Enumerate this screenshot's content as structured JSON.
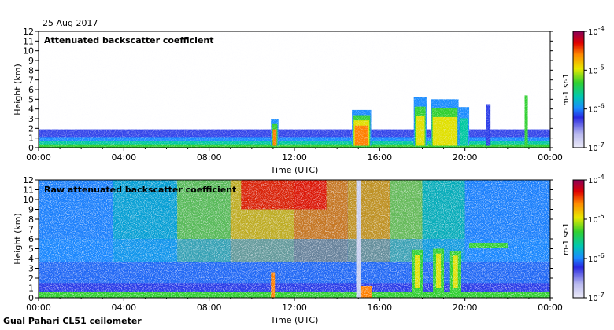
{
  "header": {
    "date": "25 Aug 2017"
  },
  "footer": {
    "instrument": "Gual Pahari CL51 ceilometer"
  },
  "chart_data": [
    {
      "type": "heatmap",
      "title": "Attenuated backscatter coefficient",
      "xlabel": "Time (UTC)",
      "ylabel": "Height (km)",
      "x_ticks": [
        "00:00",
        "04:00",
        "08:00",
        "12:00",
        "16:00",
        "20:00",
        "00:00"
      ],
      "x_range_hours": [
        0,
        24
      ],
      "y_ticks": [
        0,
        1,
        2,
        3,
        4,
        5,
        6,
        7,
        8,
        9,
        10,
        11,
        12
      ],
      "ylim": [
        0,
        12
      ],
      "colorbar": {
        "label": "m-1 sr-1",
        "scale": "log",
        "ticks": [
          "10-7",
          "10-6",
          "10-5",
          "10-4"
        ],
        "range": [
          1e-07,
          0.0001
        ]
      },
      "features": [
        {
          "description": "boundary layer aerosol",
          "hours": [
            0,
            24
          ],
          "top_km": 1.8
        },
        {
          "description": "cloud",
          "hours": [
            10.9,
            11.2
          ],
          "top_km": 3.0
        },
        {
          "description": "cloud",
          "hours": [
            14.8,
            15.6
          ],
          "top_km": 3.9
        },
        {
          "description": "cloud",
          "hours": [
            17.5,
            20.2
          ],
          "top_km": 5.2
        },
        {
          "description": "cloud",
          "hours": [
            22.8,
            23.0
          ],
          "top_km": 5.3
        }
      ]
    },
    {
      "type": "heatmap",
      "title": "Raw attenuated backscatter coefficient",
      "xlabel": "Time (UTC)",
      "ylabel": "Height (km)",
      "x_ticks": [
        "00:00",
        "04:00",
        "08:00",
        "12:00",
        "16:00",
        "20:00",
        "00:00"
      ],
      "x_range_hours": [
        0,
        24
      ],
      "y_ticks": [
        0,
        1,
        2,
        3,
        4,
        5,
        6,
        7,
        8,
        9,
        10,
        11,
        12
      ],
      "ylim": [
        0,
        12
      ],
      "colorbar": {
        "label": "m-1 sr-1",
        "scale": "log",
        "ticks": [
          "10-7",
          "10-6",
          "10-5",
          "10-4"
        ],
        "range": [
          1e-07,
          0.0001
        ]
      }
    }
  ],
  "colors": {
    "scale": [
      "#e8e4f8",
      "#2020e0",
      "#1a8cff",
      "#00c8a0",
      "#30d030",
      "#e0e000",
      "#ff8000",
      "#e00000",
      "#8a0050"
    ]
  }
}
